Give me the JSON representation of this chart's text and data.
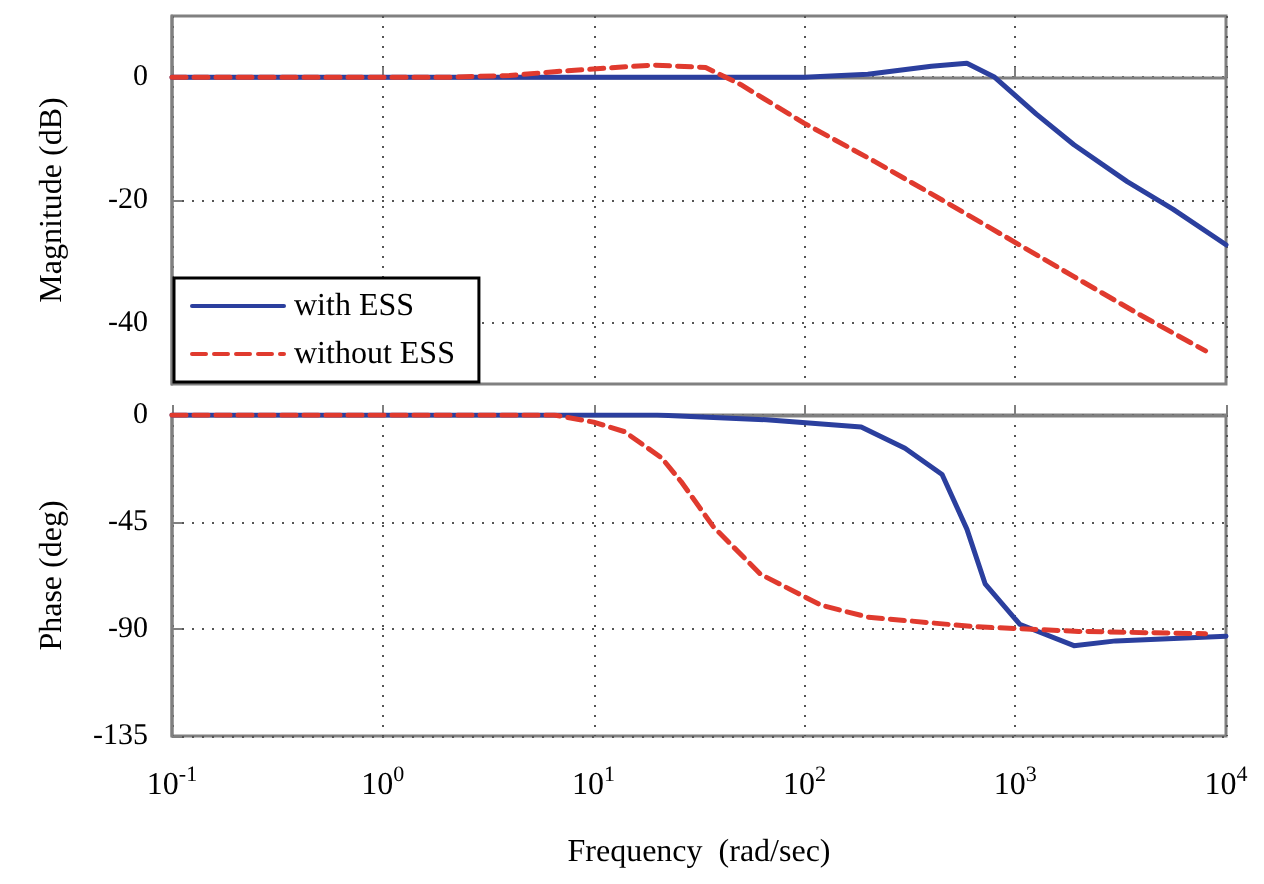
{
  "chart_data": [
    {
      "type": "line",
      "ylabel": "Magnitude (dB)",
      "log": "x",
      "grid": true,
      "legend": "bottom left",
      "tick_labels": "y",
      "marker": "none",
      "xlim": [
        0.1,
        10000
      ],
      "xticks": [
        {
          "value": 0.1,
          "label": null
        },
        {
          "value": 1,
          "label": null
        },
        {
          "value": 10,
          "label": null
        },
        {
          "value": 100,
          "label": null
        },
        {
          "value": 1000,
          "label": null
        },
        {
          "value": 10000,
          "label": null
        }
      ],
      "ylim": [
        -50,
        10
      ],
      "yticks": [
        -40,
        -20,
        0
      ],
      "series": [
        {
          "name": "with ESS",
          "color": "#2b3f9e",
          "line_style": "solid",
          "x": [
            0.1,
            10,
            100,
            200,
            400,
            590,
            800,
            1260,
            1900,
            3400,
            5600,
            10000
          ],
          "values": [
            0,
            0,
            0,
            0.5,
            1.8,
            2.3,
            0,
            -6,
            -11,
            -17,
            -21.5,
            -27.3
          ]
        },
        {
          "name": "without ESS",
          "color": "#e03a2e",
          "line_style": "dashed",
          "x": [
            0.1,
            2,
            4,
            7,
            19,
            34,
            50,
            100,
            215,
            450,
            900,
            1900,
            3900,
            8000
          ],
          "values": [
            0,
            0,
            0.3,
            1,
            2,
            1.6,
            -1.2,
            -7.5,
            -13.7,
            -20,
            -26,
            -32.5,
            -38.7,
            -44.6
          ]
        }
      ]
    },
    {
      "type": "line",
      "xlabel": "Frequency  (rad/sec)",
      "ylabel": "Phase (deg)",
      "log": "x",
      "grid": true,
      "marker": "none",
      "xlim": [
        0.1,
        10000
      ],
      "xticks": [
        {
          "value": 0.1,
          "label": "10$^{-1}$"
        },
        {
          "value": 1,
          "label": "10$^{0}$"
        },
        {
          "value": 10,
          "label": "10$^{1}$"
        },
        {
          "value": 100,
          "label": "10$^{2}$"
        },
        {
          "value": 1000,
          "label": "10$^{3}$"
        },
        {
          "value": 10000,
          "label": "10$^{4}$"
        }
      ],
      "ylim": [
        -135,
        0
      ],
      "yticks": [
        -135,
        -90,
        -45,
        0
      ],
      "series": [
        {
          "color": "#2b3f9e",
          "line_style": "solid",
          "x": [
            0.1,
            20,
            66,
            186,
            300,
            450,
            590,
            720,
            1050,
            1900,
            3000,
            10000
          ],
          "values": [
            0,
            0,
            -2,
            -5,
            -14,
            -25,
            -48,
            -71,
            -88,
            -97,
            -95,
            -93
          ]
        },
        {
          "color": "#e03a2e",
          "line_style": "dashed",
          "x": [
            0.1,
            6.5,
            10,
            14,
            21,
            26,
            37,
            62,
            120,
            200,
            630,
            2000,
            8000
          ],
          "values": [
            0,
            0,
            -3,
            -7,
            -18,
            -28,
            -47,
            -67,
            -80,
            -85,
            -89,
            -91,
            -92
          ]
        }
      ]
    }
  ]
}
